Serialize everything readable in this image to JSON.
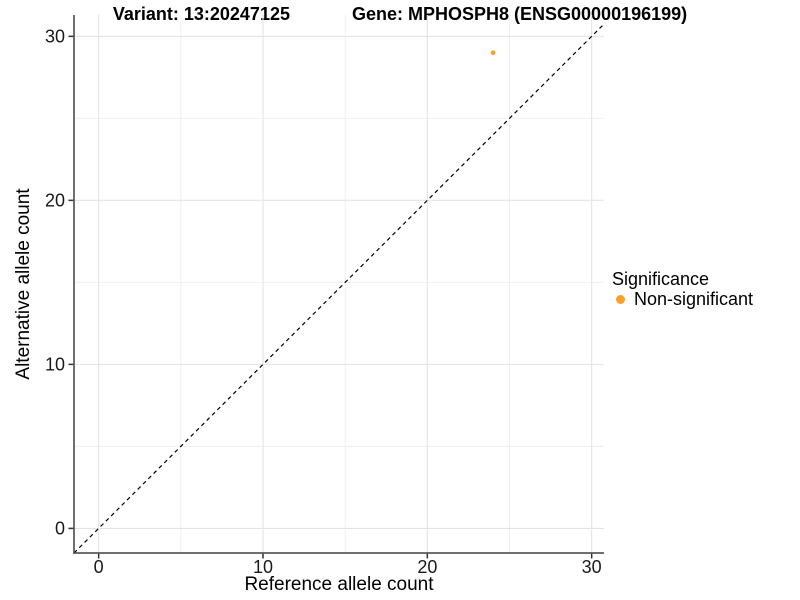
{
  "chart_data": {
    "type": "scatter",
    "title_left": "Variant: 13:20247125",
    "title_right": "Gene: MPHOSPH8 (ENSG00000196199)",
    "xlabel": "Reference allele count",
    "ylabel": "Alternative allele count",
    "x_ticks": [
      0,
      10,
      20,
      30
    ],
    "y_ticks": [
      0,
      10,
      20,
      30
    ],
    "x_minor_ticks": [
      5,
      15,
      25
    ],
    "y_minor_ticks": [
      5,
      15,
      25
    ],
    "xlim": [
      -1.5,
      30.75
    ],
    "ylim": [
      -1.5,
      31.3
    ],
    "grid": true,
    "identity_line": {
      "style": "dashed",
      "slope": 1,
      "intercept": 0
    },
    "series": [
      {
        "name": "Non-significant",
        "color": "#FB9E2A",
        "points": [
          {
            "x": 24,
            "y": 29
          }
        ]
      }
    ],
    "legend": {
      "title": "Significance",
      "position": "right",
      "items": [
        {
          "label": "Non-significant",
          "color": "#FB9E2A"
        }
      ]
    },
    "colors": {
      "background": "#FFFFFF",
      "grid_major": "#E4E4E4",
      "grid_minor": "#EEEEEE",
      "axis_line": "#404040",
      "tick": "#333333",
      "text": "#1A1A1A",
      "identity_line": "#000000"
    }
  }
}
